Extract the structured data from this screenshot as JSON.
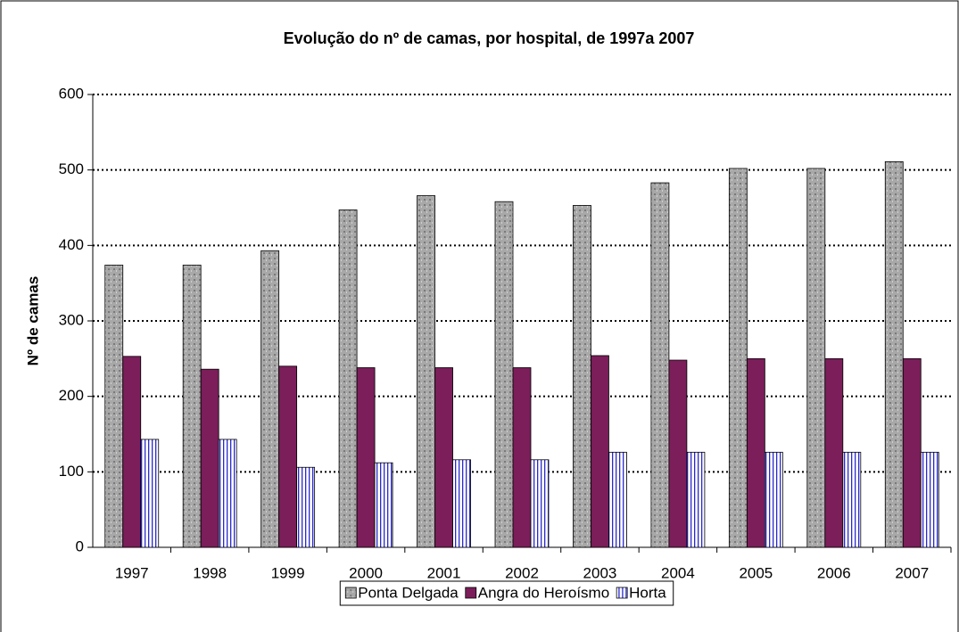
{
  "chart_data": {
    "type": "bar",
    "title": "Evolução do nº de camas, por hospital, de 1997a 2007",
    "y_label": "Nº de camas",
    "categories": [
      "1997",
      "1998",
      "1999",
      "2000",
      "2001",
      "2002",
      "2003",
      "2004",
      "2005",
      "2006",
      "2007"
    ],
    "series": [
      {
        "name": "Ponta Delgada",
        "color": "#a8a8a8",
        "values": [
          374,
          374,
          393,
          447,
          466,
          458,
          453,
          483,
          502,
          502,
          511
        ]
      },
      {
        "name": "Angra do Heroísmo",
        "color": "#7b1e5a",
        "values": [
          253,
          236,
          240,
          238,
          238,
          238,
          254,
          248,
          250,
          250,
          250
        ]
      },
      {
        "name": "Horta",
        "color": "#2a2acc",
        "pattern": "stripes",
        "values": [
          143,
          143,
          106,
          112,
          116,
          116,
          126,
          126,
          126,
          126,
          126
        ]
      }
    ],
    "ylim": [
      0,
      600
    ],
    "yticks": [
      0,
      100,
      200,
      300,
      400,
      500,
      600
    ],
    "grid": true,
    "legend": "bottom"
  }
}
